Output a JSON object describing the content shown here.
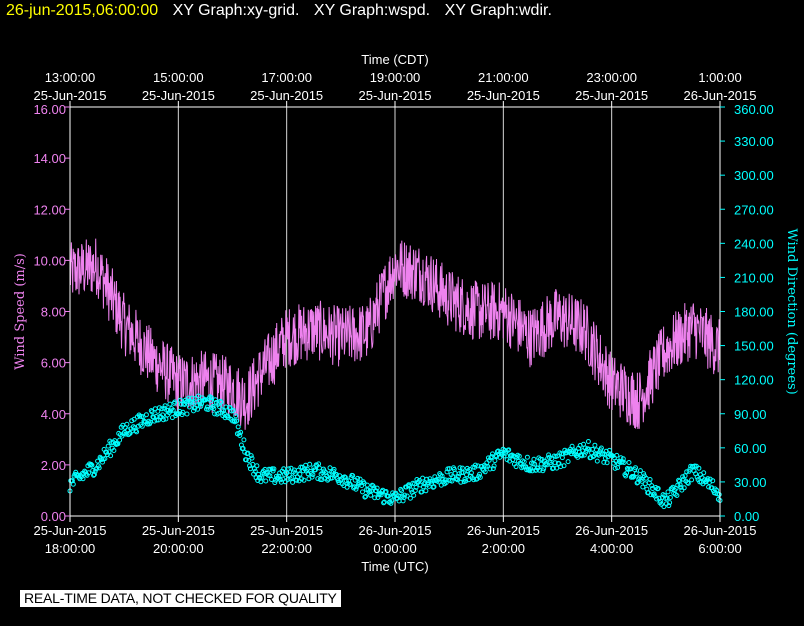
{
  "header": {
    "timestamp": "26-jun-2015,06:00:00",
    "graphs": [
      "XY Graph:xy-grid.",
      "XY Graph:wspd.",
      "XY Graph:wdir."
    ]
  },
  "footer": {
    "banner": "REAL-TIME DATA, NOT CHECKED FOR QUALITY"
  },
  "colors": {
    "background": "#000000",
    "axes": "#ffffff",
    "wind_speed": "#ee82ee",
    "wind_direction": "#00ffff",
    "grid": "#ffffff"
  },
  "chart_data": {
    "type": "line",
    "grid": true,
    "top_axis": {
      "label": "Time (CDT)",
      "ticks": [
        {
          "time": "13:00:00",
          "date": "25-Jun-2015"
        },
        {
          "time": "15:00:00",
          "date": "25-Jun-2015"
        },
        {
          "time": "17:00:00",
          "date": "25-Jun-2015"
        },
        {
          "time": "19:00:00",
          "date": "25-Jun-2015"
        },
        {
          "time": "21:00:00",
          "date": "25-Jun-2015"
        },
        {
          "time": "23:00:00",
          "date": "25-Jun-2015"
        },
        {
          "time": "1:00:00",
          "date": "26-Jun-2015"
        }
      ]
    },
    "bottom_axis": {
      "label": "Time (UTC)",
      "xlim": [
        "25-Jun-2015 18:00:00",
        "26-Jun-2015 06:00:00"
      ],
      "ticks": [
        {
          "date": "25-Jun-2015",
          "time": "18:00:00"
        },
        {
          "date": "25-Jun-2015",
          "time": "20:00:00"
        },
        {
          "date": "25-Jun-2015",
          "time": "22:00:00"
        },
        {
          "date": "26-Jun-2015",
          "time": "0:00:00"
        },
        {
          "date": "26-Jun-2015",
          "time": "2:00:00"
        },
        {
          "date": "26-Jun-2015",
          "time": "4:00:00"
        },
        {
          "date": "26-Jun-2015",
          "time": "6:00:00"
        }
      ]
    },
    "left_axis": {
      "label": "Wind Speed (m/s)",
      "ylim": [
        0,
        16
      ],
      "ticks": [
        "0.00",
        "2.00",
        "4.00",
        "6.00",
        "8.00",
        "10.00",
        "12.00",
        "14.00",
        "16.00"
      ]
    },
    "right_axis": {
      "label": "Wind Direction (degrees)",
      "ylim": [
        0,
        360
      ],
      "ticks": [
        "0.00",
        "30.00",
        "60.00",
        "90.00",
        "120.00",
        "150.00",
        "180.00",
        "210.00",
        "240.00",
        "270.00",
        "300.00",
        "330.00",
        "360.00"
      ]
    },
    "series": [
      {
        "name": "wspd",
        "style": "line",
        "axis": "left",
        "x": [
          "25-Jun-2015 18:00",
          "25-Jun-2015 18:30",
          "25-Jun-2015 19:00",
          "25-Jun-2015 19:30",
          "25-Jun-2015 20:00",
          "25-Jun-2015 20:30",
          "25-Jun-2015 21:00",
          "25-Jun-2015 21:15",
          "25-Jun-2015 21:30",
          "25-Jun-2015 22:00",
          "25-Jun-2015 22:30",
          "25-Jun-2015 23:00",
          "25-Jun-2015 23:30",
          "26-Jun-2015 00:00",
          "26-Jun-2015 00:30",
          "26-Jun-2015 01:00",
          "26-Jun-2015 01:30",
          "26-Jun-2015 02:00",
          "26-Jun-2015 02:30",
          "26-Jun-2015 03:00",
          "26-Jun-2015 03:30",
          "26-Jun-2015 04:00",
          "26-Jun-2015 04:30",
          "26-Jun-2015 05:00",
          "26-Jun-2015 05:30",
          "26-Jun-2015 06:00"
        ],
        "y": [
          9.5,
          9.8,
          7.5,
          6.2,
          5.2,
          5.3,
          5.0,
          4.5,
          5.5,
          7.0,
          7.3,
          7.0,
          7.2,
          9.8,
          9.5,
          8.5,
          8.0,
          8.0,
          7.0,
          7.8,
          7.3,
          5.2,
          4.5,
          6.5,
          7.4,
          6.5
        ]
      },
      {
        "name": "wdir",
        "style": "scatter",
        "axis": "right",
        "x": [
          "25-Jun-2015 18:00",
          "25-Jun-2015 18:30",
          "25-Jun-2015 19:00",
          "25-Jun-2015 19:30",
          "25-Jun-2015 20:00",
          "25-Jun-2015 20:30",
          "25-Jun-2015 21:00",
          "25-Jun-2015 21:15",
          "25-Jun-2015 21:30",
          "25-Jun-2015 22:00",
          "25-Jun-2015 22:30",
          "25-Jun-2015 23:00",
          "25-Jun-2015 23:30",
          "26-Jun-2015 00:00",
          "26-Jun-2015 00:30",
          "26-Jun-2015 01:00",
          "26-Jun-2015 01:30",
          "26-Jun-2015 02:00",
          "26-Jun-2015 02:30",
          "26-Jun-2015 03:00",
          "26-Jun-2015 03:30",
          "26-Jun-2015 04:00",
          "26-Jun-2015 04:30",
          "26-Jun-2015 05:00",
          "26-Jun-2015 05:30",
          "26-Jun-2015 06:00"
        ],
        "y": [
          28,
          45,
          75,
          88,
          95,
          100,
          90,
          55,
          35,
          35,
          40,
          35,
          22,
          15,
          28,
          35,
          38,
          55,
          45,
          48,
          60,
          50,
          35,
          12,
          40,
          20
        ]
      }
    ]
  }
}
